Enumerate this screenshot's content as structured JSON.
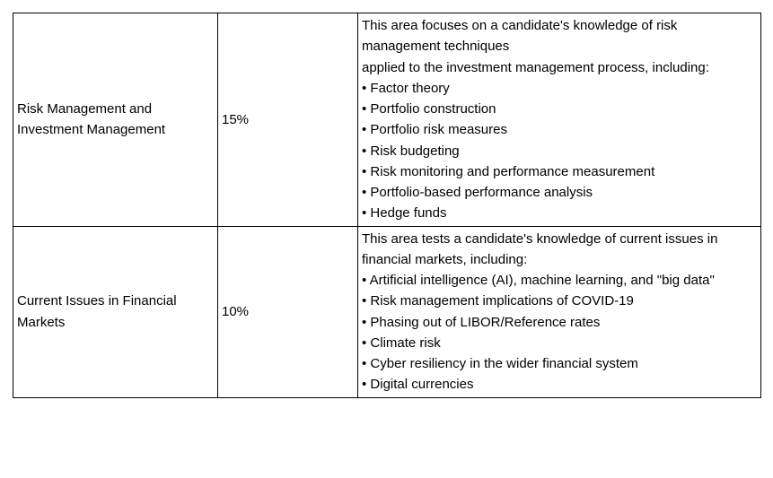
{
  "table": {
    "columns": {
      "topic_width": 228,
      "weight_width": 156,
      "desc_width": 449
    },
    "border_color": "#000000",
    "background_color": "#ffffff",
    "font_size": 15,
    "rows": [
      {
        "topic": "Risk Management and Investment Management",
        "weight": "15%",
        "intro_line1": "This area focuses on a candidate's knowledge of risk management techniques",
        "intro_line2": "applied to the investment management process, including:",
        "bullets": [
          "Factor theory",
          "Portfolio construction",
          "Portfolio risk measures",
          "Risk budgeting",
          "Risk monitoring and performance measurement",
          "Portfolio-based performance analysis",
          "Hedge funds"
        ]
      },
      {
        "topic": "Current Issues in Financial Markets",
        "weight": "10%",
        "intro_line1": "This area tests a candidate's knowledge of current issues in financial markets, including:",
        "intro_line2": "",
        "bullets": [
          "Artificial intelligence (AI), machine learning, and \"big data\"",
          "Risk management implications of COVID-19",
          "Phasing out of LIBOR/Reference rates",
          "Climate risk",
          "Cyber resiliency in the wider financial system",
          "Digital currencies"
        ]
      }
    ]
  }
}
